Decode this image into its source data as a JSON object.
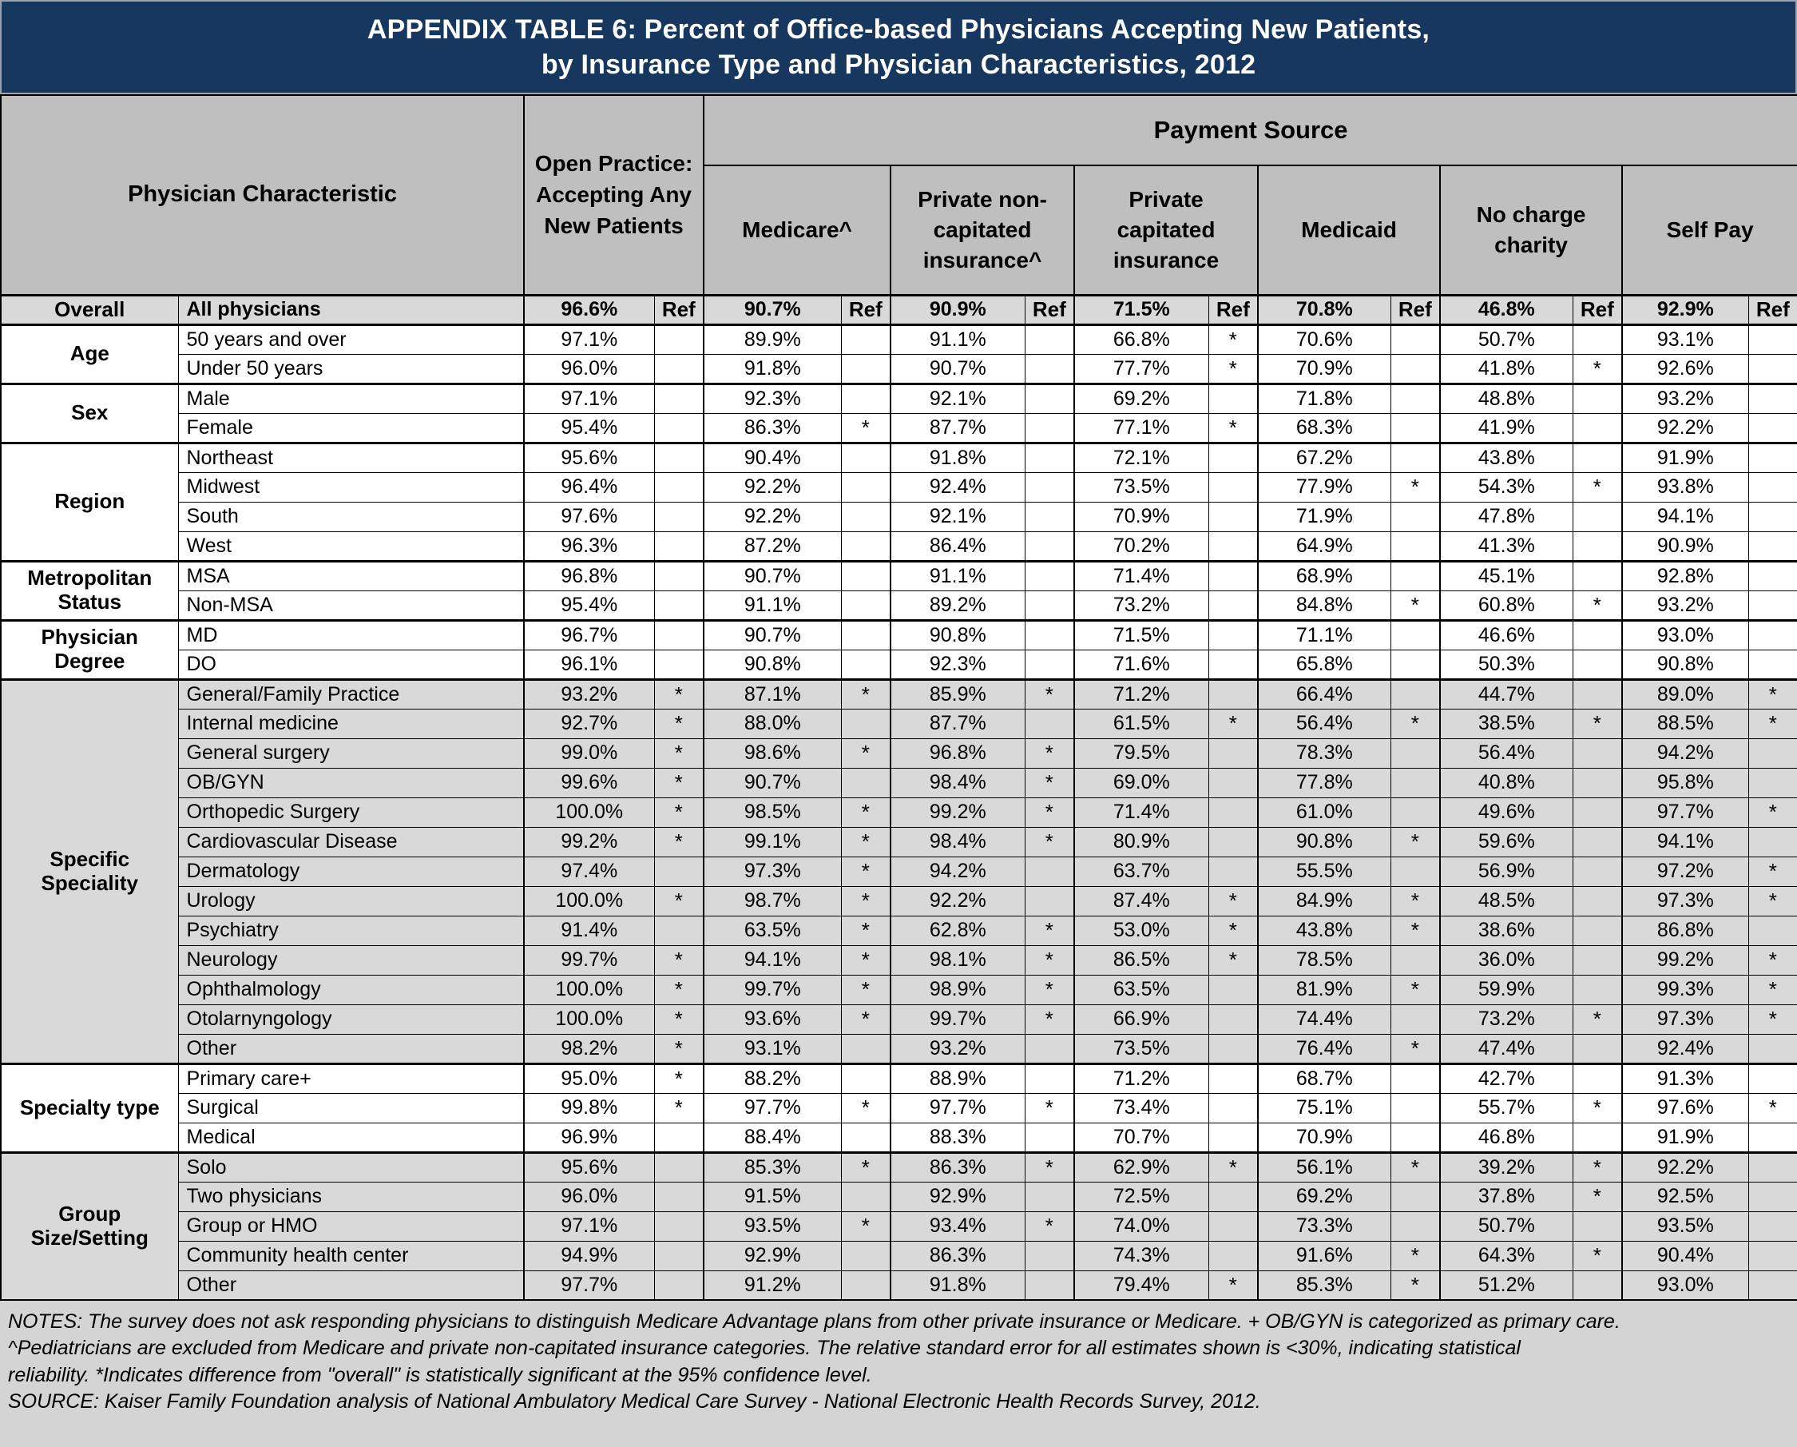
{
  "colors": {
    "title_bg": "#17375e",
    "title_text": "#ffffff",
    "header_bg": "#bfbfbf",
    "row_shade": "#d9d9d9",
    "notes_bg": "#d4d4d4"
  },
  "title": {
    "line1": "APPENDIX TABLE 6: Percent of Office-based Physicians Accepting New Patients,",
    "line2": "by Insurance Type and Physician Characteristics, 2012"
  },
  "header": {
    "physician_characteristic": "Physician Characteristic",
    "open_practice": "Open Practice: Accepting Any New Patients",
    "payment_source": "Payment Source",
    "payment_columns": [
      "Medicare^",
      "Private non-capitated insurance^",
      "Private capitated insurance",
      "Medicaid",
      "No charge charity",
      "Self Pay"
    ]
  },
  "chart_data": {
    "type": "table",
    "title": "APPENDIX TABLE 6: Percent of Office-based Physicians Accepting New Patients, by Insurance Type and Physician Characteristics, 2012",
    "columns": [
      "Open Practice: Accepting Any New Patients",
      "Medicare^",
      "Private non-capitated insurance^",
      "Private capitated insurance",
      "Medicaid",
      "No charge charity",
      "Self Pay"
    ],
    "mark_legend": "* = statistically significant difference from overall; Ref = reference row",
    "groups": [
      {
        "label": "Overall",
        "emphasis": true,
        "rows": [
          {
            "label": "All physicians",
            "values": [
              "96.6%",
              "90.7%",
              "90.9%",
              "71.5%",
              "70.8%",
              "46.8%",
              "92.9%"
            ],
            "marks": [
              "Ref",
              "Ref",
              "Ref",
              "Ref",
              "Ref",
              "Ref",
              "Ref"
            ]
          }
        ]
      },
      {
        "label": "Age",
        "rows": [
          {
            "label": "50 years and over",
            "values": [
              "97.1%",
              "89.9%",
              "91.1%",
              "66.8%",
              "70.6%",
              "50.7%",
              "93.1%"
            ],
            "marks": [
              "",
              "",
              "",
              "*",
              "",
              "",
              ""
            ]
          },
          {
            "label": "Under 50 years",
            "values": [
              "96.0%",
              "91.8%",
              "90.7%",
              "77.7%",
              "70.9%",
              "41.8%",
              "92.6%"
            ],
            "marks": [
              "",
              "",
              "",
              "*",
              "",
              "*",
              ""
            ]
          }
        ]
      },
      {
        "label": "Sex",
        "rows": [
          {
            "label": "Male",
            "values": [
              "97.1%",
              "92.3%",
              "92.1%",
              "69.2%",
              "71.8%",
              "48.8%",
              "93.2%"
            ],
            "marks": [
              "",
              "",
              "",
              "",
              "",
              "",
              ""
            ]
          },
          {
            "label": "Female",
            "values": [
              "95.4%",
              "86.3%",
              "87.7%",
              "77.1%",
              "68.3%",
              "41.9%",
              "92.2%"
            ],
            "marks": [
              "",
              "*",
              "",
              "*",
              "",
              "",
              ""
            ]
          }
        ]
      },
      {
        "label": "Region",
        "rows": [
          {
            "label": "Northeast",
            "values": [
              "95.6%",
              "90.4%",
              "91.8%",
              "72.1%",
              "67.2%",
              "43.8%",
              "91.9%"
            ],
            "marks": [
              "",
              "",
              "",
              "",
              "",
              "",
              ""
            ]
          },
          {
            "label": "Midwest",
            "values": [
              "96.4%",
              "92.2%",
              "92.4%",
              "73.5%",
              "77.9%",
              "54.3%",
              "93.8%"
            ],
            "marks": [
              "",
              "",
              "",
              "",
              "*",
              "*",
              ""
            ]
          },
          {
            "label": "South",
            "values": [
              "97.6%",
              "92.2%",
              "92.1%",
              "70.9%",
              "71.9%",
              "47.8%",
              "94.1%"
            ],
            "marks": [
              "",
              "",
              "",
              "",
              "",
              "",
              ""
            ]
          },
          {
            "label": "West",
            "values": [
              "96.3%",
              "87.2%",
              "86.4%",
              "70.2%",
              "64.9%",
              "41.3%",
              "90.9%"
            ],
            "marks": [
              "",
              "",
              "",
              "",
              "",
              "",
              ""
            ]
          }
        ]
      },
      {
        "label": "Metropolitan Status",
        "rows": [
          {
            "label": "MSA",
            "values": [
              "96.8%",
              "90.7%",
              "91.1%",
              "71.4%",
              "68.9%",
              "45.1%",
              "92.8%"
            ],
            "marks": [
              "",
              "",
              "",
              "",
              "",
              "",
              ""
            ]
          },
          {
            "label": "Non-MSA",
            "values": [
              "95.4%",
              "91.1%",
              "89.2%",
              "73.2%",
              "84.8%",
              "60.8%",
              "93.2%"
            ],
            "marks": [
              "",
              "",
              "",
              "",
              "*",
              "*",
              ""
            ]
          }
        ]
      },
      {
        "label": "Physician Degree",
        "rows": [
          {
            "label": "MD",
            "values": [
              "96.7%",
              "90.7%",
              "90.8%",
              "71.5%",
              "71.1%",
              "46.6%",
              "93.0%"
            ],
            "marks": [
              "",
              "",
              "",
              "",
              "",
              "",
              ""
            ]
          },
          {
            "label": "DO",
            "values": [
              "96.1%",
              "90.8%",
              "92.3%",
              "71.6%",
              "65.8%",
              "50.3%",
              "90.8%"
            ],
            "marks": [
              "",
              "",
              "",
              "",
              "",
              "",
              ""
            ]
          }
        ]
      },
      {
        "label": "Specific Speciality",
        "rows": [
          {
            "label": "General/Family Practice",
            "values": [
              "93.2%",
              "87.1%",
              "85.9%",
              "71.2%",
              "66.4%",
              "44.7%",
              "89.0%"
            ],
            "marks": [
              "*",
              "*",
              "*",
              "",
              "",
              "",
              "*"
            ]
          },
          {
            "label": "Internal medicine",
            "values": [
              "92.7%",
              "88.0%",
              "87.7%",
              "61.5%",
              "56.4%",
              "38.5%",
              "88.5%"
            ],
            "marks": [
              "*",
              "",
              "",
              "*",
              "*",
              "*",
              "*"
            ]
          },
          {
            "label": "General surgery",
            "values": [
              "99.0%",
              "98.6%",
              "96.8%",
              "79.5%",
              "78.3%",
              "56.4%",
              "94.2%"
            ],
            "marks": [
              "*",
              "*",
              "*",
              "",
              "",
              "",
              ""
            ]
          },
          {
            "label": "OB/GYN",
            "values": [
              "99.6%",
              "90.7%",
              "98.4%",
              "69.0%",
              "77.8%",
              "40.8%",
              "95.8%"
            ],
            "marks": [
              "*",
              "",
              "*",
              "",
              "",
              "",
              ""
            ]
          },
          {
            "label": "Orthopedic Surgery",
            "values": [
              "100.0%",
              "98.5%",
              "99.2%",
              "71.4%",
              "61.0%",
              "49.6%",
              "97.7%"
            ],
            "marks": [
              "*",
              "*",
              "*",
              "",
              "",
              "",
              "*"
            ]
          },
          {
            "label": "Cardiovascular Disease",
            "values": [
              "99.2%",
              "99.1%",
              "98.4%",
              "80.9%",
              "90.8%",
              "59.6%",
              "94.1%"
            ],
            "marks": [
              "*",
              "*",
              "*",
              "",
              "*",
              "",
              ""
            ]
          },
          {
            "label": "Dermatology",
            "values": [
              "97.4%",
              "97.3%",
              "94.2%",
              "63.7%",
              "55.5%",
              "56.9%",
              "97.2%"
            ],
            "marks": [
              "",
              "*",
              "",
              "",
              "",
              "",
              "*"
            ]
          },
          {
            "label": "Urology",
            "values": [
              "100.0%",
              "98.7%",
              "92.2%",
              "87.4%",
              "84.9%",
              "48.5%",
              "97.3%"
            ],
            "marks": [
              "*",
              "*",
              "",
              "*",
              "*",
              "",
              "*"
            ]
          },
          {
            "label": "Psychiatry",
            "values": [
              "91.4%",
              "63.5%",
              "62.8%",
              "53.0%",
              "43.8%",
              "38.6%",
              "86.8%"
            ],
            "marks": [
              "",
              "*",
              "*",
              "*",
              "*",
              "",
              ""
            ]
          },
          {
            "label": "Neurology",
            "values": [
              "99.7%",
              "94.1%",
              "98.1%",
              "86.5%",
              "78.5%",
              "36.0%",
              "99.2%"
            ],
            "marks": [
              "*",
              "*",
              "*",
              "*",
              "",
              "",
              "*"
            ]
          },
          {
            "label": "Ophthalmology",
            "values": [
              "100.0%",
              "99.7%",
              "98.9%",
              "63.5%",
              "81.9%",
              "59.9%",
              "99.3%"
            ],
            "marks": [
              "*",
              "*",
              "*",
              "",
              "*",
              "",
              "*"
            ]
          },
          {
            "label": "Otolarnyngology",
            "values": [
              "100.0%",
              "93.6%",
              "99.7%",
              "66.9%",
              "74.4%",
              "73.2%",
              "97.3%"
            ],
            "marks": [
              "*",
              "*",
              "*",
              "",
              "",
              "*",
              "*"
            ]
          },
          {
            "label": "Other",
            "values": [
              "98.2%",
              "93.1%",
              "93.2%",
              "73.5%",
              "76.4%",
              "47.4%",
              "92.4%"
            ],
            "marks": [
              "*",
              "",
              "",
              "",
              "*",
              "",
              ""
            ]
          }
        ]
      },
      {
        "label": "Specialty type",
        "rows": [
          {
            "label": "Primary care+",
            "values": [
              "95.0%",
              "88.2%",
              "88.9%",
              "71.2%",
              "68.7%",
              "42.7%",
              "91.3%"
            ],
            "marks": [
              "*",
              "",
              "",
              "",
              "",
              "",
              ""
            ]
          },
          {
            "label": "Surgical",
            "values": [
              "99.8%",
              "97.7%",
              "97.7%",
              "73.4%",
              "75.1%",
              "55.7%",
              "97.6%"
            ],
            "marks": [
              "*",
              "*",
              "*",
              "",
              "",
              "*",
              "*"
            ]
          },
          {
            "label": "Medical",
            "values": [
              "96.9%",
              "88.4%",
              "88.3%",
              "70.7%",
              "70.9%",
              "46.8%",
              "91.9%"
            ],
            "marks": [
              "",
              "",
              "",
              "",
              "",
              "",
              ""
            ]
          }
        ]
      },
      {
        "label": "Group Size/Setting",
        "rows": [
          {
            "label": "Solo",
            "values": [
              "95.6%",
              "85.3%",
              "86.3%",
              "62.9%",
              "56.1%",
              "39.2%",
              "92.2%"
            ],
            "marks": [
              "",
              "*",
              "*",
              "*",
              "*",
              "*",
              ""
            ]
          },
          {
            "label": "Two physicians",
            "values": [
              "96.0%",
              "91.5%",
              "92.9%",
              "72.5%",
              "69.2%",
              "37.8%",
              "92.5%"
            ],
            "marks": [
              "",
              "",
              "",
              "",
              "",
              "*",
              ""
            ]
          },
          {
            "label": "Group or HMO",
            "values": [
              "97.1%",
              "93.5%",
              "93.4%",
              "74.0%",
              "73.3%",
              "50.7%",
              "93.5%"
            ],
            "marks": [
              "",
              "*",
              "*",
              "",
              "",
              "",
              ""
            ]
          },
          {
            "label": "Community health center",
            "values": [
              "94.9%",
              "92.9%",
              "86.3%",
              "74.3%",
              "91.6%",
              "64.3%",
              "90.4%"
            ],
            "marks": [
              "",
              "",
              "",
              "",
              "*",
              "*",
              ""
            ]
          },
          {
            "label": "Other",
            "values": [
              "97.7%",
              "91.2%",
              "91.8%",
              "79.4%",
              "85.3%",
              "51.2%",
              "93.0%"
            ],
            "marks": [
              "",
              "",
              "",
              "*",
              "*",
              "",
              ""
            ]
          }
        ]
      }
    ]
  },
  "notes": {
    "lines": [
      "NOTES: The survey does not ask responding physicians to distinguish Medicare Advantage plans from other private insurance or Medicare. + OB/GYN is categorized as primary care.",
      "^Pediatricians are excluded from Medicare and private non-capitated insurance categories. The relative standard error for all estimates shown is <30%, indicating statistical",
      "reliability. *Indicates difference from \"overall\" is statistically significant at the 95% confidence level."
    ],
    "source": "SOURCE: Kaiser Family Foundation analysis of National Ambulatory Medical Care Survey - National Electronic Health Records Survey, 2012."
  }
}
